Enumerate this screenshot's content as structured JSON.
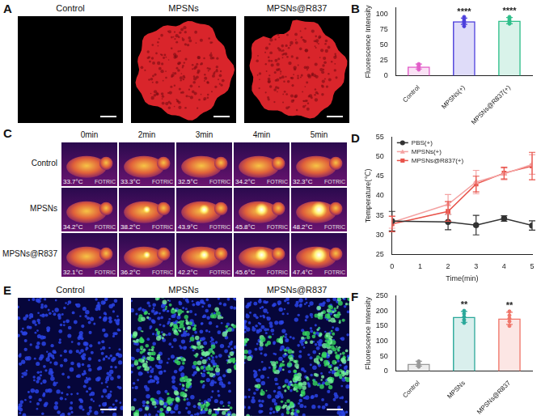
{
  "figure": {
    "A": {
      "label": "A",
      "columns": [
        "Control",
        "MPSNs",
        "MPSNs@R837"
      ]
    },
    "C": {
      "label": "C",
      "times": [
        "0min",
        "2min",
        "3min",
        "4min",
        "5min"
      ],
      "rows": [
        {
          "name": "Control",
          "readings": [
            "33.7°C",
            "33.3°C",
            "32.5°C",
            "34.2°C",
            "32.3°C"
          ]
        },
        {
          "name": "MPSNs",
          "readings": [
            "34.2°C",
            "38.2°C",
            "43.9°C",
            "45.8°C",
            "48.2°C"
          ]
        },
        {
          "name": "MPSNs@R837",
          "readings": [
            "32.1°C",
            "36.2°C",
            "42.2°C",
            "45.6°C",
            "47.4°C"
          ]
        }
      ],
      "watermark": "FOTRIC"
    },
    "E": {
      "label": "E",
      "columns": [
        "Control",
        "MPSNs",
        "MPSNs@R837"
      ]
    }
  },
  "chart_data": [
    {
      "panel": "B",
      "type": "bar",
      "categories": [
        "Control",
        "MPSNs(+)",
        "MPSNs@R837(+)"
      ],
      "values": [
        15,
        88,
        89
      ],
      "errors": [
        4,
        5,
        5
      ],
      "points": [
        [
          10,
          13,
          15,
          17,
          19
        ],
        [
          80,
          85,
          88,
          91,
          95
        ],
        [
          84,
          86,
          89,
          92,
          95
        ]
      ],
      "colors": [
        "#e25fc9",
        "#4c3fdc",
        "#2fbf8a"
      ],
      "significance": [
        null,
        "****",
        "****"
      ],
      "ylabel": "Fluorescence Intensity",
      "ylim": [
        0,
        110
      ],
      "yticks": [
        0,
        25,
        50,
        75,
        100
      ],
      "grid": false
    },
    {
      "panel": "D",
      "type": "line",
      "x": [
        0,
        2,
        3,
        4,
        5
      ],
      "xlabel": "Time(min)",
      "ylabel": "Temperature(℃)",
      "xlim": [
        0,
        5
      ],
      "xticks": [
        0,
        1,
        2,
        3,
        4,
        5
      ],
      "ylim": [
        25,
        55
      ],
      "yticks": [
        25,
        30,
        35,
        40,
        45,
        50,
        55
      ],
      "grid": false,
      "legend": "upper left",
      "series": [
        {
          "name": "PBS(+)",
          "color": "#333333",
          "marker": "circle",
          "values": [
            33.5,
            33.3,
            32.5,
            34.2,
            32.4
          ],
          "errors": [
            2.5,
            2,
            2.5,
            0.7,
            1.2
          ]
        },
        {
          "name": "MPSNs(+)",
          "color": "#f4a3a3",
          "marker": "triangle",
          "values": [
            33.2,
            37.8,
            43.5,
            45.6,
            48.0
          ],
          "errors": [
            1.5,
            2.5,
            3,
            1.5,
            2.5
          ]
        },
        {
          "name": "MPSNs@R837(+)",
          "color": "#e8534a",
          "marker": "square",
          "values": [
            32.8,
            36.0,
            43.0,
            45.8,
            47.6
          ],
          "errors": [
            2,
            2.5,
            2,
            1.5,
            3.5
          ]
        }
      ]
    },
    {
      "panel": "F",
      "type": "bar",
      "categories": [
        "Control",
        "MPSNs",
        "MPSNs@R837"
      ],
      "values": [
        25,
        180,
        175
      ],
      "errors": [
        8,
        18,
        20
      ],
      "points": [
        [
          15,
          20,
          25,
          30,
          33
        ],
        [
          160,
          170,
          180,
          190,
          200
        ],
        [
          150,
          165,
          175,
          185,
          198
        ]
      ],
      "colors": [
        "#9a9a9a",
        "#2aa89a",
        "#f0766a"
      ],
      "significance": [
        null,
        "**",
        "**"
      ],
      "ylabel": "Fluorescence Intensity",
      "ylim": [
        0,
        250
      ],
      "yticks": [
        0,
        50,
        100,
        150,
        200,
        250
      ],
      "grid": false
    }
  ]
}
